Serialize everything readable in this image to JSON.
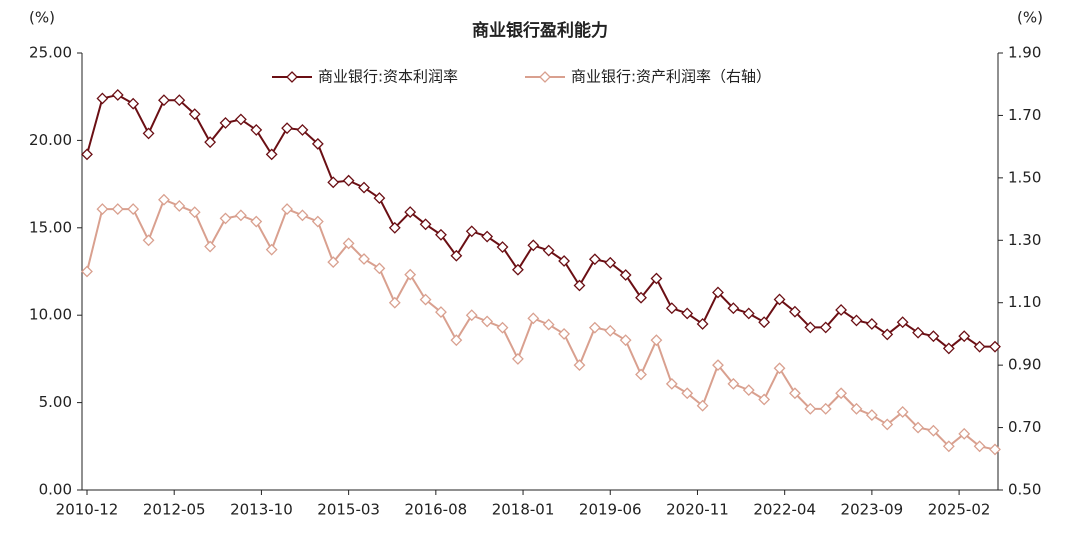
{
  "chart_data": {
    "type": "line",
    "title": "商业银行盈利能力",
    "y_unit": "(%)",
    "y2_unit": "(%)",
    "x": [
      "2010-12",
      "2011-03",
      "2011-06",
      "2011-09",
      "2011-12",
      "2012-03",
      "2012-06",
      "2012-09",
      "2012-12",
      "2013-03",
      "2013-06",
      "2013-09",
      "2013-12",
      "2014-03",
      "2014-06",
      "2014-09",
      "2014-12",
      "2015-03",
      "2015-06",
      "2015-09",
      "2015-12",
      "2016-03",
      "2016-06",
      "2016-09",
      "2016-12",
      "2017-03",
      "2017-06",
      "2017-09",
      "2017-12",
      "2018-03",
      "2018-06",
      "2018-09",
      "2018-12",
      "2019-03",
      "2019-06",
      "2019-09",
      "2019-12",
      "2020-03",
      "2020-06",
      "2020-09",
      "2020-12",
      "2021-03",
      "2021-06",
      "2021-09",
      "2021-12",
      "2022-03",
      "2022-06",
      "2022-09",
      "2022-12",
      "2023-03",
      "2023-06",
      "2023-09",
      "2023-12",
      "2024-03",
      "2024-06",
      "2024-09",
      "2024-12",
      "2025-03",
      "2025-06",
      "2025-09"
    ],
    "xlim": [
      "2010-12",
      "2025-09"
    ],
    "xticks": [
      "2010-12",
      "2012-05",
      "2013-10",
      "2015-03",
      "2016-08",
      "2018-01",
      "2019-06",
      "2020-11",
      "2022-04",
      "2023-09",
      "2025-02"
    ],
    "ylim": [
      0,
      25
    ],
    "yticks": [
      {
        "value": 0,
        "label": "0.00"
      },
      {
        "value": 5,
        "label": "5.00"
      },
      {
        "value": 10,
        "label": "10.00"
      },
      {
        "value": 15,
        "label": "15.00"
      },
      {
        "value": 20,
        "label": "20.00"
      },
      {
        "value": 25,
        "label": "25.00"
      }
    ],
    "y2lim": [
      0.5,
      1.9
    ],
    "y2ticks": [
      {
        "value": 0.5,
        "label": "0.50"
      },
      {
        "value": 0.7,
        "label": "0.70"
      },
      {
        "value": 0.9,
        "label": "0.90"
      },
      {
        "value": 1.1,
        "label": "1.10"
      },
      {
        "value": 1.3,
        "label": "1.30"
      },
      {
        "value": 1.5,
        "label": "1.50"
      },
      {
        "value": 1.7,
        "label": "1.70"
      },
      {
        "value": 1.9,
        "label": "1.90"
      }
    ],
    "legend": "top",
    "series": [
      {
        "name": "商业银行:资本利润率",
        "color": "#6b0f14",
        "axis": "y",
        "values": [
          19.2,
          22.4,
          22.6,
          22.1,
          20.4,
          22.3,
          22.3,
          21.5,
          19.9,
          21.0,
          21.2,
          20.6,
          19.2,
          20.7,
          20.6,
          19.8,
          17.6,
          17.7,
          17.3,
          16.7,
          15.0,
          15.9,
          15.2,
          14.6,
          13.4,
          14.8,
          14.5,
          13.9,
          12.6,
          14.0,
          13.7,
          13.1,
          11.7,
          13.2,
          13.0,
          12.3,
          11.0,
          12.1,
          10.4,
          10.1,
          9.5,
          11.3,
          10.4,
          10.1,
          9.6,
          10.9,
          10.2,
          9.3,
          9.3,
          10.3,
          9.7,
          9.5,
          8.9,
          9.6,
          9.0,
          8.8,
          8.1,
          8.8,
          8.2,
          8.2
        ]
      },
      {
        "name": "商业银行:资产利润率（右轴）",
        "color": "#d9a08f",
        "axis": "y2",
        "values": [
          1.2,
          1.4,
          1.4,
          1.4,
          1.3,
          1.43,
          1.41,
          1.39,
          1.28,
          1.37,
          1.38,
          1.36,
          1.27,
          1.4,
          1.38,
          1.36,
          1.23,
          1.29,
          1.24,
          1.21,
          1.1,
          1.19,
          1.11,
          1.07,
          0.98,
          1.06,
          1.04,
          1.02,
          0.92,
          1.05,
          1.03,
          1.0,
          0.9,
          1.02,
          1.01,
          0.98,
          0.87,
          0.98,
          0.84,
          0.81,
          0.77,
          0.9,
          0.84,
          0.82,
          0.79,
          0.89,
          0.81,
          0.76,
          0.76,
          0.81,
          0.76,
          0.74,
          0.71,
          0.75,
          0.7,
          0.69,
          0.64,
          0.68,
          0.64,
          0.63
        ]
      }
    ]
  }
}
